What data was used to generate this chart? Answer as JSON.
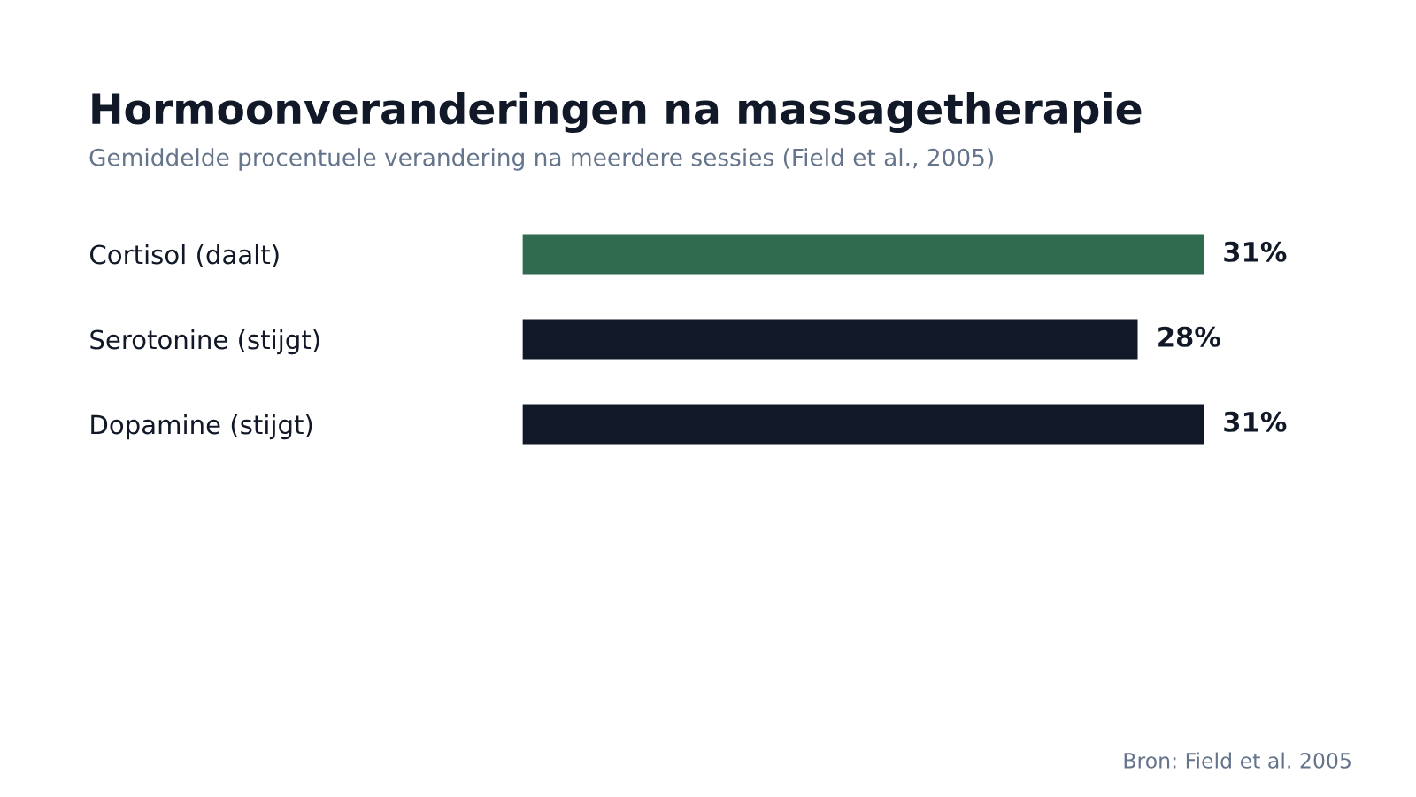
{
  "chart_data": {
    "type": "bar",
    "orientation": "horizontal",
    "title": "Hormoonveranderingen na massagetherapie",
    "subtitle": "Gemiddelde procentuele verandering na meerdere sessies (Field et al., 2005)",
    "categories": [
      "Cortisol (daalt)",
      "Serotonine (stijgt)",
      "Dopamine (stijgt)"
    ],
    "values": [
      31,
      28,
      31
    ],
    "colors": [
      "#2e6b4f",
      "#111827",
      "#111827"
    ],
    "value_labels": [
      "31%",
      "28%",
      "31%"
    ],
    "xlim": [
      0,
      31
    ],
    "tick_labels": "y",
    "grid": false,
    "legend": false,
    "annotations": [
      "Bron: Field et al. 2005"
    ]
  }
}
